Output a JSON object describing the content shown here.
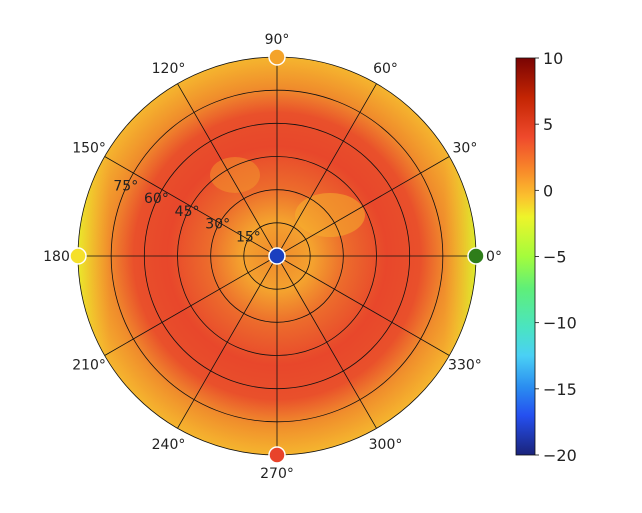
{
  "chart_data": {
    "type": "heatmap",
    "subtype": "polar",
    "title": "",
    "angular_ticks": [
      "0°",
      "30°",
      "60°",
      "90°",
      "120°",
      "150°",
      "180°",
      "210°",
      "240°",
      "270°",
      "300°",
      "330°"
    ],
    "radial_ticks": [
      "15°",
      "30°",
      "45°",
      "60°",
      "75°"
    ],
    "radial_range": [
      0,
      90
    ],
    "grid": true,
    "colorbar": {
      "range": [
        -20,
        10
      ],
      "ticks": [
        "10",
        "5",
        "0",
        "−5",
        "−10",
        "−15",
        "−20"
      ],
      "colormap": "turbo",
      "position": "right"
    },
    "field_summary": "Values mostly between ~2 and ~7; inner ring and rim mostly orange/red (~4-7), outer edge near 0-2 (yellow/yellow-green) especially at 0° and 180° sides",
    "markers": [
      {
        "angle": 0,
        "radius": 90,
        "color": "#2e7d1a",
        "label": "0°"
      },
      {
        "angle": 90,
        "radius": 90,
        "color": "#f4a32a"
      },
      {
        "angle": 180,
        "radius": 90,
        "color": "#f5e02a"
      },
      {
        "angle": 270,
        "radius": 90,
        "color": "#e8432b"
      },
      {
        "angle": 0,
        "radius": 0,
        "color": "#1a3fbf"
      }
    ]
  },
  "colors": {
    "grid": "#111111",
    "outer": "#f4a52a",
    "mid": "#ec6b2d",
    "hot": "#e8432b",
    "edge_yellow": "#e6f02a"
  }
}
